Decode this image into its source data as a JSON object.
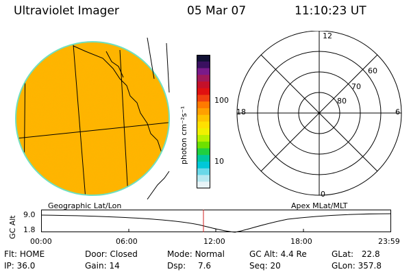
{
  "header": {
    "instrument": "Ultraviolet Imager",
    "date": "05 Mar 07",
    "time": "11:10:23 UT"
  },
  "colorbar": {
    "unit_label": "photon cm⁻²s⁻¹",
    "ticks": [
      "100",
      "10"
    ],
    "colors": [
      "#111133",
      "#3a1060",
      "#7a1a8a",
      "#a0195a",
      "#c4102a",
      "#e01010",
      "#f04010",
      "#ff7a00",
      "#ffa000",
      "#ffc400",
      "#ffe000",
      "#f0f000",
      "#b8f000",
      "#6ee000",
      "#20d040",
      "#00c8a0",
      "#00c8d8",
      "#6ad8e8",
      "#b8e8f0",
      "#e8f4f8"
    ]
  },
  "panels": {
    "left_label": "Geographic Lat/Lon",
    "right_label": "Apex MLat/MLT",
    "polar_labels": {
      "top": "12",
      "bottom": "0",
      "left": "18",
      "right": "6",
      "lat60": "60",
      "lat70": "70",
      "lat80": "80"
    }
  },
  "altitude_plot": {
    "ylabel": "GC Alt",
    "yticks": [
      "9.0",
      "1.8"
    ],
    "xticks": [
      "00:00",
      "06:00",
      "12:00",
      "18:00",
      "23:59"
    ],
    "marker_time": "11:10"
  },
  "status": {
    "flt_label": "Flt:",
    "flt_value": "HOME",
    "ip_label": "IP:",
    "ip_value": "36.0",
    "door_label": "Door:",
    "door_value": "Closed",
    "gain_label": "Gain:",
    "gain_value": "14",
    "mode_label": "Mode:",
    "mode_value": "Normal",
    "dsp_label": "Dsp:",
    "dsp_value": "7.6",
    "gcalt_label": "GC Alt:",
    "gcalt_value": "4.4 Re",
    "seq_label": "Seq:",
    "seq_value": "20",
    "glat_label": "GLat:",
    "glat_value": "22.8",
    "glon_label": "GLon:",
    "glon_value": "357.8"
  }
}
